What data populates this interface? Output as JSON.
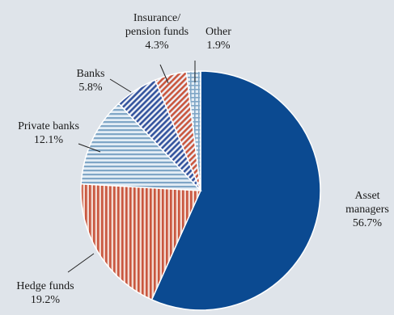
{
  "chart_data": {
    "type": "pie",
    "title": "",
    "start": "12 o'clock",
    "direction": "clockwise",
    "slices": [
      {
        "label": "Asset managers",
        "value": 56.7,
        "value_text": "56.7%",
        "label_lines": [
          "Asset",
          "managers",
          "56.7%"
        ],
        "color": "#0b4a91",
        "pattern": "solid"
      },
      {
        "label": "Hedge funds",
        "value": 19.2,
        "value_text": "19.2%",
        "label_lines": [
          "Hedge funds",
          "19.2%"
        ],
        "color": "#c9573f",
        "pattern": "vertical"
      },
      {
        "label": "Private banks",
        "value": 12.1,
        "value_text": "12.1%",
        "label_lines": [
          "Private banks",
          "12.1%"
        ],
        "color": "#7fa6c6",
        "pattern": "horizontal"
      },
      {
        "label": "Banks",
        "value": 5.8,
        "value_text": "5.8%",
        "label_lines": [
          "Banks",
          "5.8%"
        ],
        "color": "#34549e",
        "pattern": "diagonal"
      },
      {
        "label": "Insurance/ pension funds",
        "value": 4.3,
        "value_text": "4.3%",
        "label_lines": [
          "Insurance/",
          "pension funds",
          "4.3%"
        ],
        "color": "#c9573f",
        "pattern": "diagonal"
      },
      {
        "label": "Other",
        "value": 1.9,
        "value_text": "1.9%",
        "label_lines": [
          "Other",
          "1.9%"
        ],
        "color": "#7fa6c6",
        "pattern": "grid"
      }
    ]
  }
}
